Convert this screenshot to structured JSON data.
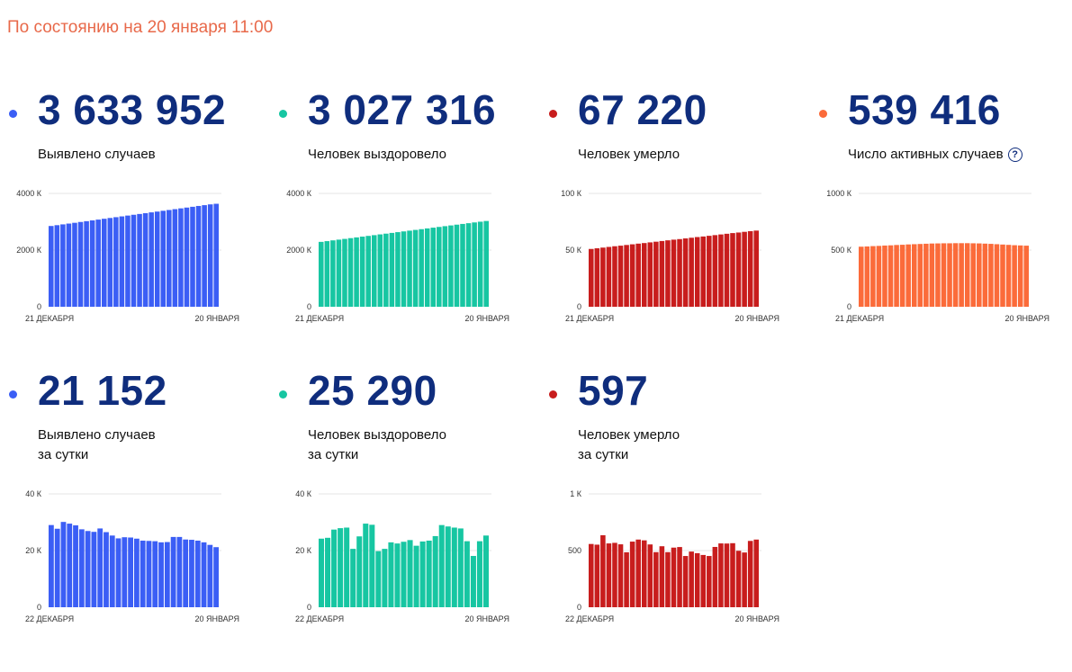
{
  "header": {
    "as_of": "По состоянию на 20 января 11:00"
  },
  "help_icon": "question-circle-icon",
  "chart_data": [
    {
      "id": "cases_total",
      "type": "bar",
      "color": "#3b5ef5",
      "value": "3 633 952",
      "label": "Выявлено случаев",
      "label2": "",
      "ylim": [
        0,
        4000
      ],
      "yticks": [
        0,
        2000,
        4000
      ],
      "ytick_labels": [
        "0",
        "2000 К",
        "4000 К"
      ],
      "xlabels": [
        "21 ДЕКАБРЯ",
        "20 ЯНВАРЯ"
      ],
      "values": [
        2850,
        2879,
        2907,
        2935,
        2963,
        2992,
        3020,
        3048,
        3076,
        3105,
        3133,
        3161,
        3189,
        3218,
        3246,
        3274,
        3302,
        3331,
        3359,
        3387,
        3415,
        3444,
        3472,
        3500,
        3528,
        3557,
        3585,
        3613,
        3634
      ]
    },
    {
      "id": "recovered_total",
      "type": "bar",
      "color": "#17c6a2",
      "value": "3 027 316",
      "label": "Человек выздоровело",
      "label2": "",
      "ylim": [
        0,
        4000
      ],
      "yticks": [
        0,
        2000,
        4000
      ],
      "ytick_labels": [
        "0",
        "2000 К",
        "4000 К"
      ],
      "xlabels": [
        "21 ДЕКАБРЯ",
        "20 ЯНВАРЯ"
      ],
      "values": [
        2290,
        2316,
        2343,
        2369,
        2395,
        2422,
        2448,
        2475,
        2501,
        2527,
        2554,
        2580,
        2606,
        2633,
        2659,
        2686,
        2712,
        2738,
        2765,
        2791,
        2817,
        2844,
        2870,
        2897,
        2923,
        2949,
        2976,
        3002,
        3027
      ]
    },
    {
      "id": "deaths_total",
      "type": "bar",
      "color": "#c81d1d",
      "value": "67 220",
      "label": "Человек умерло",
      "label2": "",
      "ylim": [
        0,
        100
      ],
      "yticks": [
        0,
        50,
        100
      ],
      "ytick_labels": [
        "0",
        "50 К",
        "100 К"
      ],
      "xlabels": [
        "21 ДЕКАБРЯ",
        "20 ЯНВАРЯ"
      ],
      "values": [
        51.0,
        51.6,
        52.2,
        52.8,
        53.4,
        53.9,
        54.5,
        55.1,
        55.7,
        56.2,
        56.8,
        57.4,
        58.0,
        58.6,
        59.2,
        59.7,
        60.3,
        60.9,
        61.5,
        62.0,
        62.6,
        63.2,
        63.8,
        64.4,
        65.0,
        65.5,
        66.1,
        66.7,
        67.2
      ]
    },
    {
      "id": "active_total",
      "type": "bar",
      "color": "#fb6b3a",
      "value": "539 416",
      "label": "Число активных случаев",
      "label2": "",
      "ylim": [
        0,
        1000
      ],
      "yticks": [
        0,
        500,
        1000
      ],
      "ytick_labels": [
        "0",
        "500 К",
        "1000 К"
      ],
      "xlabels": [
        "21 ДЕКАБРЯ",
        "20 ЯНВАРЯ"
      ],
      "values": [
        530,
        532,
        535,
        537,
        540,
        542,
        545,
        547,
        550,
        552,
        554,
        556,
        558,
        559,
        560,
        560,
        561,
        561,
        561,
        560,
        559,
        557,
        555,
        552,
        549,
        546,
        543,
        541,
        539
      ]
    },
    {
      "id": "cases_daily",
      "type": "bar",
      "color": "#3b5ef5",
      "value": "21 152",
      "label": "Выявлено случаев",
      "label2": "за сутки",
      "ylim": [
        0,
        40
      ],
      "yticks": [
        0,
        20,
        40
      ],
      "ytick_labels": [
        "0",
        "20 К",
        "40 К"
      ],
      "xlabels": [
        "22 ДЕКАБРЯ",
        "20 ЯНВАРЯ"
      ],
      "values": [
        29.0,
        27.7,
        30.1,
        29.5,
        28.9,
        27.5,
        26.9,
        26.6,
        27.8,
        26.5,
        25.3,
        24.3,
        24.7,
        24.6,
        24.2,
        23.5,
        23.4,
        23.3,
        22.9,
        23.0,
        24.8,
        24.8,
        23.9,
        23.8,
        23.5,
        22.9,
        22.0,
        21.2
      ]
    },
    {
      "id": "recovered_daily",
      "type": "bar",
      "color": "#17c6a2",
      "value": "25 290",
      "label": "Человек выздоровело",
      "label2": "за сутки",
      "ylim": [
        0,
        40
      ],
      "yticks": [
        0,
        20,
        40
      ],
      "ytick_labels": [
        "0",
        "20 К",
        "40 К"
      ],
      "xlabels": [
        "22 ДЕКАБРЯ",
        "20 ЯНВАРЯ"
      ],
      "values": [
        24.2,
        24.5,
        27.4,
        27.9,
        28.1,
        20.6,
        25.0,
        29.5,
        29.1,
        19.8,
        20.6,
        22.9,
        22.5,
        23.1,
        23.7,
        21.7,
        23.2,
        23.5,
        25.1,
        29.0,
        28.5,
        28.1,
        27.8,
        23.3,
        18.1,
        23.3,
        25.3
      ]
    },
    {
      "id": "deaths_daily",
      "type": "bar",
      "color": "#c81d1d",
      "value": "597",
      "label": "Человек умерло",
      "label2": "за сутки",
      "ylim": [
        0,
        1000
      ],
      "yticks": [
        0,
        500,
        1000
      ],
      "ytick_labels": [
        "0",
        "500",
        "1 К"
      ],
      "xlabels": [
        "22 ДЕКАБРЯ",
        "20 ЯНВАРЯ"
      ],
      "values": [
        558,
        552,
        635,
        563,
        568,
        555,
        485,
        579,
        597,
        590,
        554,
        486,
        538,
        486,
        526,
        531,
        452,
        491,
        477,
        461,
        452,
        532,
        563,
        562,
        565,
        498,
        483,
        585,
        597
      ]
    }
  ]
}
